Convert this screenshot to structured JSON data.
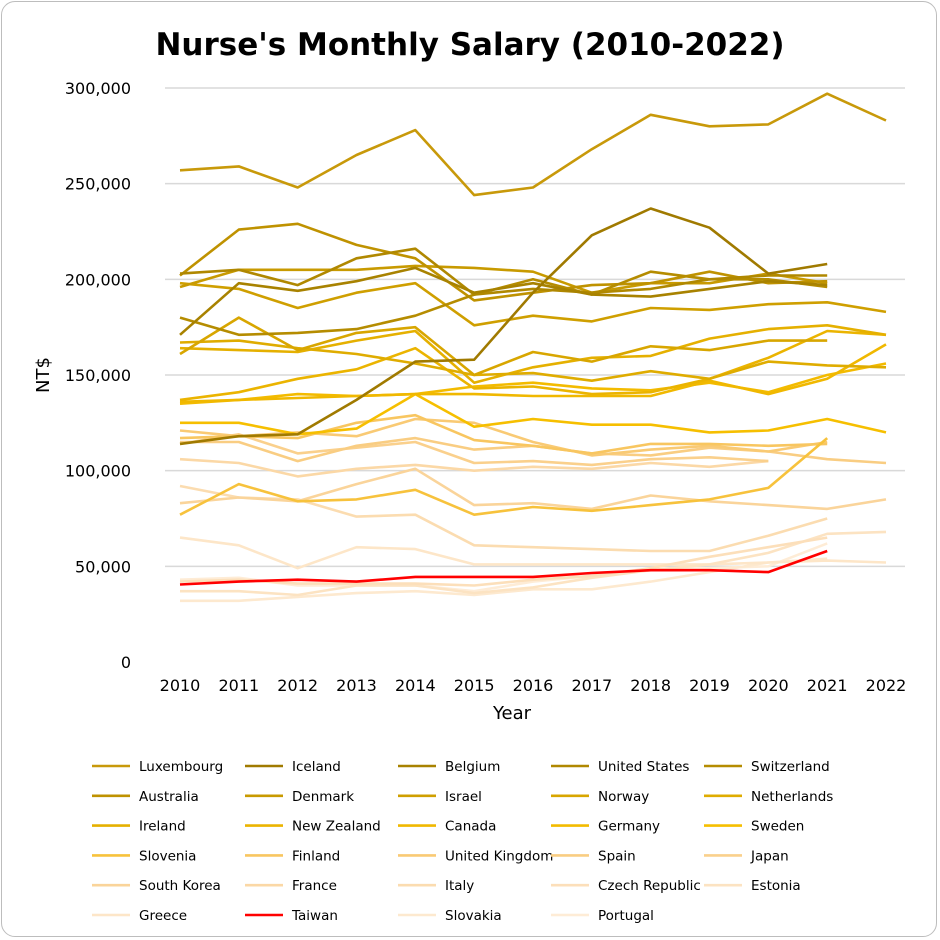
{
  "chart_data": {
    "type": "line",
    "title": "Nurse's Monthly Salary (2010-2022)",
    "xlabel": "Year",
    "ylabel": "NT$",
    "ylim": [
      0,
      300000
    ],
    "yticks": [
      "0",
      "50,000",
      "100,000",
      "150,000",
      "200,000",
      "250,000",
      "300,000"
    ],
    "ytick_values": [
      0,
      50000,
      100000,
      150000,
      200000,
      250000,
      300000
    ],
    "grid": true,
    "legend_position": "bottom",
    "x": [
      "2010",
      "2011",
      "2012",
      "2013",
      "2014",
      "2015",
      "2016",
      "2017",
      "2018",
      "2019",
      "2020",
      "2021",
      "2022"
    ],
    "series": [
      {
        "name": "Luxembourg",
        "color": "#c8990a",
        "values": [
          257000,
          259000,
          248000,
          265000,
          278000,
          244000,
          248000,
          268000,
          286000,
          280000,
          281000,
          297000,
          283000
        ]
      },
      {
        "name": "Iceland",
        "color": "#a07a00",
        "values": [
          114000,
          118000,
          119000,
          137000,
          157000,
          158000,
          193000,
          223000,
          237000,
          227000,
          203000,
          208000,
          null
        ]
      },
      {
        "name": "Belgium",
        "color": "#a88200",
        "values": [
          171000,
          198000,
          194000,
          199000,
          206000,
          193000,
          198000,
          192000,
          191000,
          195000,
          199000,
          197000,
          null
        ]
      },
      {
        "name": "United States",
        "color": "#b08800",
        "values": [
          203000,
          205000,
          197000,
          211000,
          216000,
          192000,
          195000,
          193000,
          195000,
          200000,
          202000,
          202000,
          null
        ]
      },
      {
        "name": "Switzerland",
        "color": "#b58c00",
        "values": [
          180000,
          171000,
          172000,
          174000,
          181000,
          192000,
          200000,
          192000,
          204000,
          200000,
          200000,
          196000,
          null
        ]
      },
      {
        "name": "Australia",
        "color": "#bf9200",
        "values": [
          202000,
          226000,
          229000,
          218000,
          211000,
          189000,
          193000,
          197000,
          198000,
          204000,
          198000,
          199000,
          null
        ]
      },
      {
        "name": "Denmark",
        "color": "#c89a00",
        "values": [
          196000,
          205000,
          205000,
          205000,
          207000,
          206000,
          204000,
          193000,
          198000,
          198000,
          203000,
          198000,
          null
        ]
      },
      {
        "name": "Israel",
        "color": "#cf9f00",
        "values": [
          198000,
          195000,
          185000,
          193000,
          198000,
          176000,
          181000,
          178000,
          185000,
          184000,
          187000,
          188000,
          183000
        ]
      },
      {
        "name": "Norway",
        "color": "#d8a600",
        "values": [
          161000,
          180000,
          163000,
          172000,
          175000,
          150000,
          162000,
          157000,
          165000,
          163000,
          168000,
          168000,
          null
        ]
      },
      {
        "name": "Netherlands",
        "color": "#dfac00",
        "values": [
          167000,
          168000,
          164000,
          161000,
          156000,
          150000,
          151000,
          147000,
          152000,
          148000,
          157000,
          155000,
          154000
        ]
      },
      {
        "name": "Ireland",
        "color": "#e5b000",
        "values": [
          164000,
          163000,
          162000,
          168000,
          173000,
          146000,
          154000,
          159000,
          160000,
          169000,
          174000,
          176000,
          171000
        ]
      },
      {
        "name": "New Zealand",
        "color": "#ebb400",
        "values": [
          137000,
          141000,
          148000,
          153000,
          164000,
          143000,
          144000,
          140000,
          141000,
          148000,
          159000,
          173000,
          171000
        ]
      },
      {
        "name": "Canada",
        "color": "#f0b800",
        "values": [
          136000,
          137000,
          138000,
          139000,
          140000,
          140000,
          139000,
          139000,
          139000,
          147000,
          140000,
          148000,
          166000
        ]
      },
      {
        "name": "Germany",
        "color": "#f3bb00",
        "values": [
          135000,
          137000,
          140000,
          139000,
          140000,
          144000,
          146000,
          143000,
          142000,
          146000,
          141000,
          150000,
          156000
        ]
      },
      {
        "name": "Sweden",
        "color": "#f6bf00",
        "values": [
          125000,
          125000,
          119000,
          122000,
          140000,
          123000,
          127000,
          124000,
          124000,
          120000,
          121000,
          127000,
          120000
        ]
      },
      {
        "name": "Slovenia",
        "color": "#f7c23c",
        "values": [
          77000,
          93000,
          84000,
          85000,
          90000,
          77000,
          81000,
          79000,
          82000,
          85000,
          91000,
          117000,
          null
        ]
      },
      {
        "name": "Finland",
        "color": "#f8c660",
        "values": [
          117000,
          118000,
          117000,
          125000,
          129000,
          116000,
          113000,
          109000,
          114000,
          114000,
          113000,
          114000,
          null
        ]
      },
      {
        "name": "United Kingdom",
        "color": "#f9ca74",
        "values": [
          121000,
          118000,
          120000,
          118000,
          127000,
          125000,
          115000,
          108000,
          111000,
          113000,
          110000,
          115000,
          null
        ]
      },
      {
        "name": "Spain",
        "color": "#f9cd82",
        "values": [
          115000,
          115000,
          105000,
          113000,
          117000,
          111000,
          113000,
          109000,
          108000,
          112000,
          110000,
          106000,
          104000
        ]
      },
      {
        "name": "Japan",
        "color": "#fad08c",
        "values": [
          114000,
          119000,
          109000,
          112000,
          115000,
          104000,
          105000,
          103000,
          106000,
          107000,
          105000,
          null,
          null
        ]
      },
      {
        "name": "South Korea",
        "color": "#fad49a",
        "values": [
          83000,
          86000,
          84000,
          93000,
          101000,
          82000,
          83000,
          80000,
          87000,
          84000,
          82000,
          80000,
          85000
        ]
      },
      {
        "name": "France",
        "color": "#fbd8a6",
        "values": [
          106000,
          104000,
          97000,
          101000,
          103000,
          100000,
          102000,
          101000,
          104000,
          102000,
          105000,
          null,
          null
        ]
      },
      {
        "name": "Italy",
        "color": "#fbdcb0",
        "values": [
          92000,
          86000,
          85000,
          76000,
          77000,
          61000,
          60000,
          59000,
          58000,
          58000,
          66000,
          75000,
          null
        ]
      },
      {
        "name": "Czech Republic",
        "color": "#fcdfba",
        "values": [
          42000,
          43000,
          41000,
          41000,
          41000,
          40000,
          43000,
          45000,
          49000,
          55000,
          60000,
          65000,
          null
        ]
      },
      {
        "name": "Estonia",
        "color": "#fce3c2",
        "values": [
          37000,
          37000,
          35000,
          40000,
          40000,
          36000,
          39000,
          44000,
          48000,
          51000,
          57000,
          67000,
          68000
        ]
      },
      {
        "name": "Greece",
        "color": "#fde6c8",
        "values": [
          65000,
          61000,
          49000,
          60000,
          59000,
          51000,
          51000,
          51000,
          51000,
          51000,
          52000,
          53000,
          52000
        ]
      },
      {
        "name": "Taiwan",
        "color": "#ff0000",
        "values": [
          40500,
          42000,
          43000,
          42000,
          44500,
          44500,
          44500,
          46500,
          48000,
          48000,
          47000,
          58000,
          null
        ]
      },
      {
        "name": "Slovakia",
        "color": "#fde9cf",
        "values": [
          32000,
          32000,
          34000,
          36000,
          37000,
          35000,
          38000,
          38000,
          42000,
          47000,
          52000,
          54000,
          null
        ]
      },
      {
        "name": "Portugal",
        "color": "#feecd6",
        "values": [
          43000,
          44000,
          40000,
          40000,
          40000,
          37000,
          42000,
          45000,
          48000,
          49000,
          50000,
          62000,
          null
        ]
      }
    ]
  }
}
